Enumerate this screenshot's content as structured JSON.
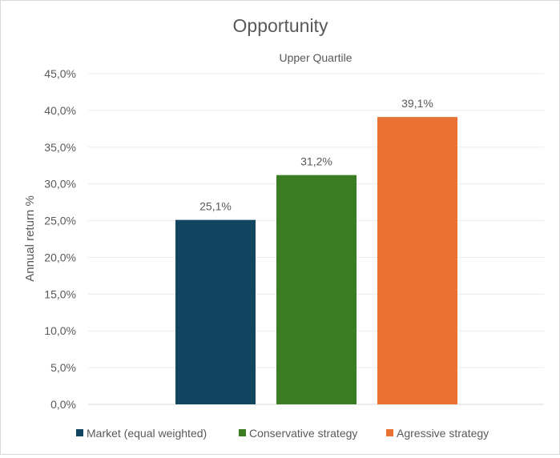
{
  "chart_data": {
    "type": "bar",
    "title": "Opportunity",
    "categories": [
      "Upper Quartile"
    ],
    "xlabel": "",
    "ylabel": "Annual return %",
    "ylim": [
      0,
      45
    ],
    "yticks": [
      "0,0%",
      "5,0%",
      "10,0%",
      "15,0%",
      "20,0%",
      "25,0%",
      "30,0%",
      "35,0%",
      "40,0%",
      "45,0%"
    ],
    "ytick_values": [
      0,
      5,
      10,
      15,
      20,
      25,
      30,
      35,
      40,
      45
    ],
    "grid": true,
    "legend_position": "bottom",
    "series": [
      {
        "name": "Market (equal weighted)",
        "values": [
          25.1
        ],
        "label": "25,1%",
        "color": "#124660"
      },
      {
        "name": "Conservative strategy",
        "values": [
          31.2
        ],
        "label": "31,2%",
        "color": "#3b7d23"
      },
      {
        "name": "Agressive strategy",
        "values": [
          39.1
        ],
        "label": "39,1%",
        "color": "#e97132"
      }
    ]
  }
}
